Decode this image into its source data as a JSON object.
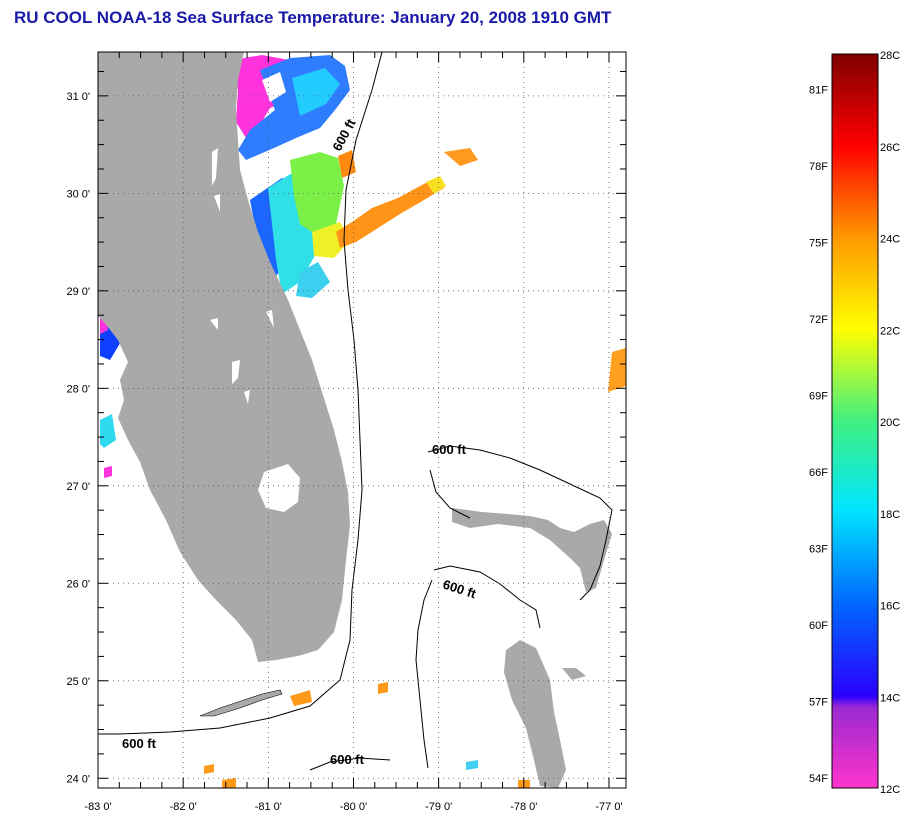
{
  "title": "RU COOL  NOAA-18  Sea Surface Temperature:  January 20, 2008 1910 GMT",
  "map": {
    "lon_range": [
      -83,
      -76.8
    ],
    "lat_range": [
      23.9,
      31.45
    ],
    "grid": true,
    "lat_labels": [
      "31 0'",
      "30 0'",
      "29 0'",
      "28 0'",
      "27 0'",
      "26 0'",
      "25 0'",
      "24 0'"
    ],
    "lon_labels": [
      "-83 0'",
      "-82 0'",
      "-81 0'",
      "-80 0'",
      "-79 0'",
      "-78 0'",
      "-77 0'"
    ],
    "contour_labels": [
      "600 ft",
      "600 ft",
      "600 ft",
      "600 ft",
      "600 ft"
    ],
    "land_color": "#a9a9a9",
    "ocean_color": "#ffffff"
  },
  "colorbar": {
    "min_c": 12,
    "max_c": 28,
    "celsius_labels": [
      "28C",
      "26C",
      "24C",
      "22C",
      "20C",
      "18C",
      "16C",
      "14C",
      "12C"
    ],
    "fahrenheit_labels": [
      "81F",
      "78F",
      "75F",
      "72F",
      "69F",
      "66F",
      "63F",
      "60F",
      "57F",
      "54F"
    ]
  }
}
